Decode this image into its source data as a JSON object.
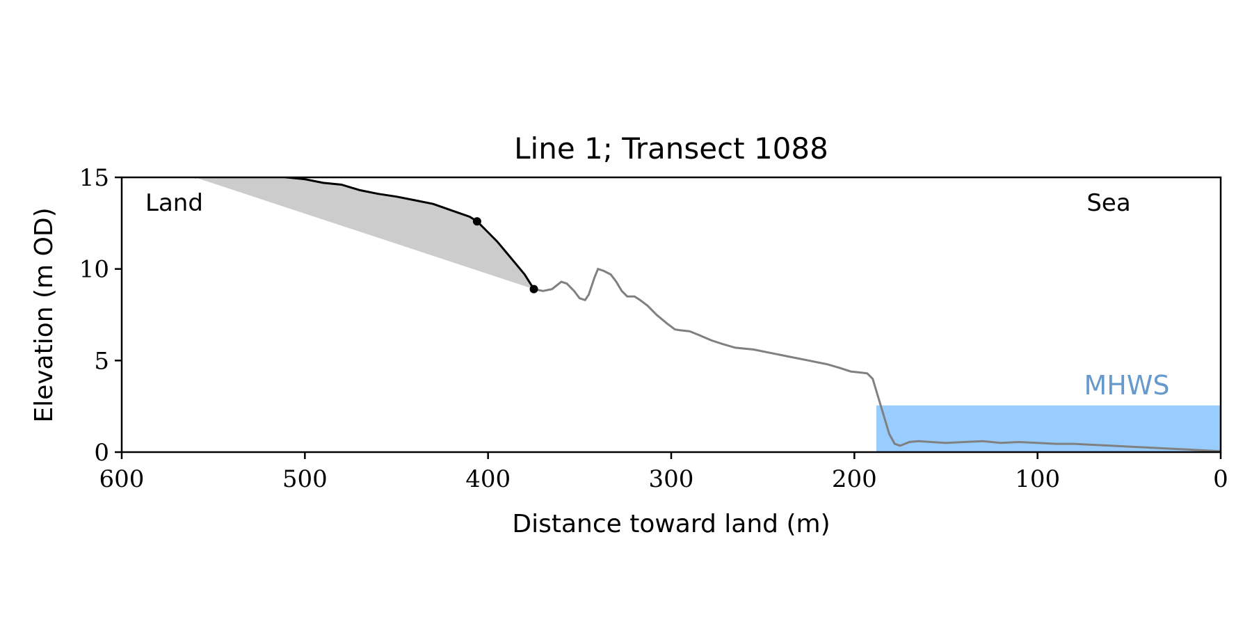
{
  "chart_data": {
    "type": "line",
    "title": "Line 1; Transect 1088",
    "xlabel": "Distance toward land (m)",
    "ylabel": "Elevation (m OD)",
    "xlim": [
      600,
      0
    ],
    "ylim": [
      0,
      15
    ],
    "x_ticks": [
      600,
      500,
      400,
      300,
      200,
      100,
      0
    ],
    "y_ticks": [
      0,
      5,
      10,
      15
    ],
    "grid": false,
    "annotations": {
      "land": "Land",
      "sea": "Sea",
      "mhws_label": "MHWS"
    },
    "mhws": {
      "elevation": 2.55,
      "x_from": 188,
      "x_to": 0,
      "color": "#99ccff",
      "label_color": "#6699cc"
    },
    "profile": {
      "color": "#808080",
      "points": [
        [
          375,
          8.9
        ],
        [
          370,
          8.8
        ],
        [
          365,
          8.9
        ],
        [
          360,
          9.3
        ],
        [
          357,
          9.2
        ],
        [
          353,
          8.8
        ],
        [
          350,
          8.4
        ],
        [
          347,
          8.3
        ],
        [
          345,
          8.6
        ],
        [
          342,
          9.5
        ],
        [
          340,
          10.0
        ],
        [
          337,
          9.9
        ],
        [
          333,
          9.7
        ],
        [
          330,
          9.3
        ],
        [
          327,
          8.8
        ],
        [
          324,
          8.5
        ],
        [
          320,
          8.5
        ],
        [
          317,
          8.3
        ],
        [
          313,
          8.0
        ],
        [
          308,
          7.5
        ],
        [
          302,
          7.0
        ],
        [
          298,
          6.7
        ],
        [
          295,
          6.65
        ],
        [
          290,
          6.6
        ],
        [
          285,
          6.4
        ],
        [
          278,
          6.1
        ],
        [
          272,
          5.9
        ],
        [
          265,
          5.7
        ],
        [
          255,
          5.6
        ],
        [
          245,
          5.4
        ],
        [
          235,
          5.2
        ],
        [
          225,
          5.0
        ],
        [
          215,
          4.8
        ],
        [
          208,
          4.6
        ],
        [
          202,
          4.4
        ],
        [
          197,
          4.35
        ],
        [
          193,
          4.3
        ],
        [
          190,
          4.0
        ],
        [
          187,
          3.0
        ],
        [
          184,
          2.0
        ],
        [
          181,
          1.0
        ],
        [
          178,
          0.45
        ],
        [
          175,
          0.35
        ],
        [
          170,
          0.55
        ],
        [
          165,
          0.6
        ],
        [
          158,
          0.55
        ],
        [
          150,
          0.5
        ],
        [
          140,
          0.55
        ],
        [
          130,
          0.6
        ],
        [
          120,
          0.5
        ],
        [
          110,
          0.55
        ],
        [
          100,
          0.5
        ],
        [
          90,
          0.45
        ],
        [
          80,
          0.45
        ],
        [
          70,
          0.4
        ],
        [
          60,
          0.35
        ],
        [
          50,
          0.3
        ],
        [
          40,
          0.25
        ],
        [
          30,
          0.2
        ],
        [
          20,
          0.15
        ],
        [
          10,
          0.1
        ],
        [
          0,
          0.05
        ]
      ]
    },
    "cliff": {
      "color": "#000000",
      "points": [
        [
          560,
          15.0
        ],
        [
          550,
          15.2
        ],
        [
          540,
          15.2
        ],
        [
          530,
          15.2
        ],
        [
          520,
          15.15
        ],
        [
          510,
          15.0
        ],
        [
          500,
          14.9
        ],
        [
          490,
          14.7
        ],
        [
          480,
          14.6
        ],
        [
          470,
          14.3
        ],
        [
          460,
          14.1
        ],
        [
          450,
          13.95
        ],
        [
          440,
          13.75
        ],
        [
          430,
          13.55
        ],
        [
          420,
          13.2
        ],
        [
          410,
          12.85
        ],
        [
          406,
          12.6
        ],
        [
          400,
          12.0
        ],
        [
          395,
          11.5
        ],
        [
          390,
          10.9
        ],
        [
          385,
          10.3
        ],
        [
          380,
          9.7
        ],
        [
          375,
          8.9
        ]
      ],
      "markers": [
        [
          406,
          12.6
        ],
        [
          375,
          8.9
        ]
      ]
    },
    "erosion_area": {
      "color": "#cccccc",
      "baseline": [
        [
          560,
          15.0
        ],
        [
          375,
          8.9
        ]
      ]
    }
  }
}
